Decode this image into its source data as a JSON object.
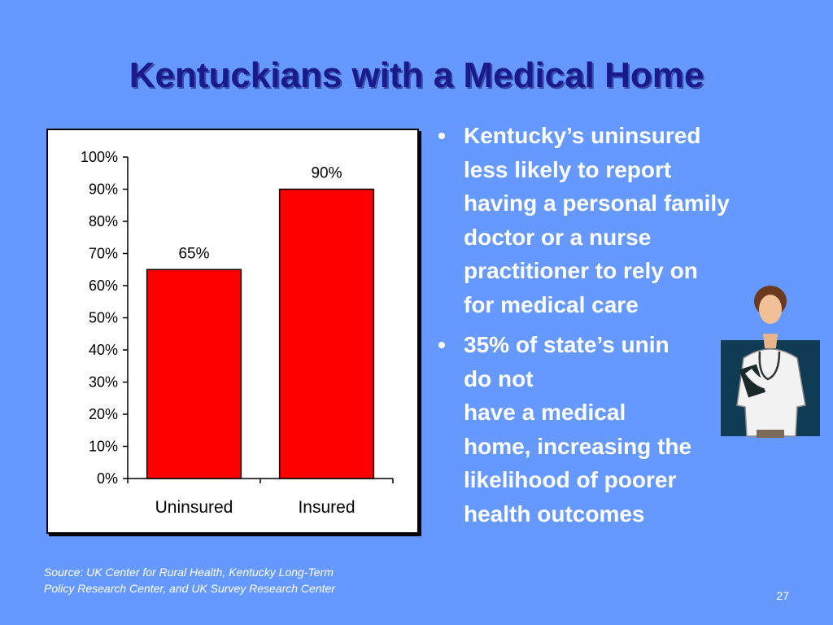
{
  "title": "Kentuckians with a Medical Home",
  "chart_data": {
    "type": "bar",
    "categories": [
      "Uninsured",
      "Insured"
    ],
    "values": [
      65,
      90
    ],
    "value_labels": [
      "65%",
      "90%"
    ],
    "ylim": [
      0,
      100
    ],
    "y_ticks": [
      "0%",
      "10%",
      "20%",
      "30%",
      "40%",
      "50%",
      "60%",
      "70%",
      "80%",
      "90%",
      "100%"
    ],
    "title": "",
    "xlabel": "",
    "ylabel": "",
    "grid": false,
    "bar_color": "#ff0000"
  },
  "bullets": [
    {
      "marker": "•",
      "lines": [
        "Kentucky’s uninsured",
        "less likely to report",
        "having a personal family",
        "doctor or a nurse",
        "practitioner to rely on",
        "for medical care"
      ]
    },
    {
      "marker": "•",
      "lines": [
        "35% of state’s unin",
        "do not",
        "have a medical",
        "home, increasing the",
        "likelihood of poorer",
        "health outcomes"
      ]
    }
  ],
  "source": {
    "line1": "Source: UK Center for Rural Health, Kentucky Long-Term",
    "line2": "Policy Research Center, and UK Survey Research Center"
  },
  "page_number": "27",
  "image": {
    "icon": "doctor-clipart-icon",
    "panel_color": "#0f3b55"
  }
}
